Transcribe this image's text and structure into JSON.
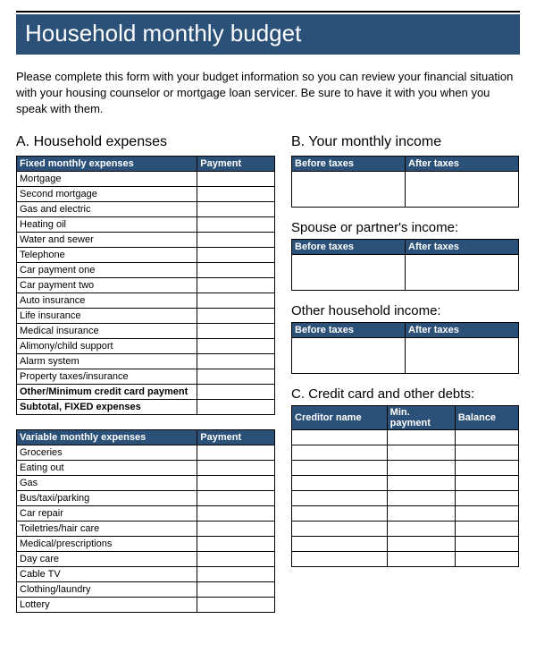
{
  "title": "Household monthly budget",
  "intro": "Please complete this form with your budget information so you can review your financial situation with your housing counselor or mortgage loan servicer. Be sure to have it with you when you speak with them.",
  "colors": {
    "header_bg": "#2b5178",
    "header_fg": "#ffffff",
    "border": "#000000"
  },
  "sectionA": {
    "heading": "A. Household expenses",
    "fixed": {
      "col1": "Fixed monthly expenses",
      "col2": "Payment",
      "rows": [
        "Mortgage",
        "Second mortgage",
        "Gas and electric",
        "Heating oil",
        "Water and sewer",
        "Telephone",
        "Car payment one",
        "Car payment two",
        "Auto insurance",
        "Life insurance",
        "Medical insurance",
        "Alimony/child support",
        "Alarm system",
        "Property taxes/insurance"
      ],
      "bold_rows": [
        "Other/Minimum credit card payment",
        "Subtotal, FIXED expenses"
      ]
    },
    "variable": {
      "col1": "Variable monthly expenses",
      "col2": "Payment",
      "rows": [
        "Groceries",
        "Eating out",
        "Gas",
        "Bus/taxi/parking",
        "Car repair",
        "Toiletries/hair care",
        "Medical/prescriptions",
        "Day care",
        "Cable TV",
        "Clothing/laundry",
        "Lottery"
      ]
    }
  },
  "sectionB": {
    "heading": "B.  Your monthly income",
    "before": "Before taxes",
    "after": "After taxes",
    "spouse_heading": "Spouse or partner's income:",
    "other_heading": "Other household income:"
  },
  "sectionC": {
    "heading": "C.  Credit card and other debts:",
    "col1": "Creditor name",
    "col2": "Min. payment",
    "col3": "Balance",
    "blank_rows": 9
  }
}
